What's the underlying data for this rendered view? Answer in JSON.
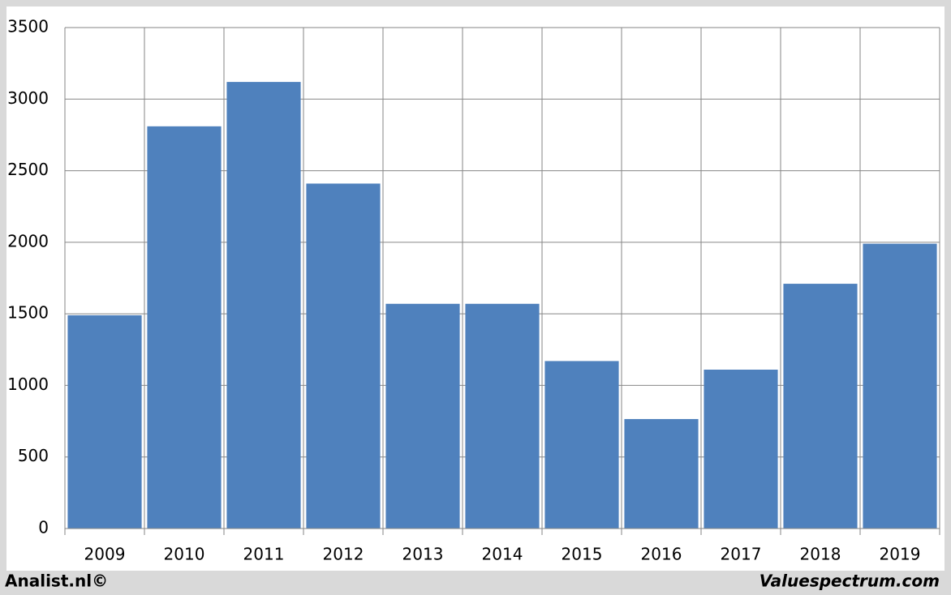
{
  "chart_data": {
    "type": "bar",
    "categories": [
      "2009",
      "2010",
      "2011",
      "2012",
      "2013",
      "2014",
      "2015",
      "2016",
      "2017",
      "2018",
      "2019"
    ],
    "values": [
      1490,
      2810,
      3120,
      2410,
      1570,
      1570,
      1170,
      765,
      1110,
      1710,
      1990
    ],
    "color": "#4f81bd",
    "ylim": [
      0,
      3500
    ],
    "yticks": [
      0,
      500,
      1000,
      1500,
      2000,
      2500,
      3000,
      3500
    ],
    "grid": true,
    "credit_left": "Analist.nl©",
    "credit_right": "Valuespectrum.com"
  }
}
